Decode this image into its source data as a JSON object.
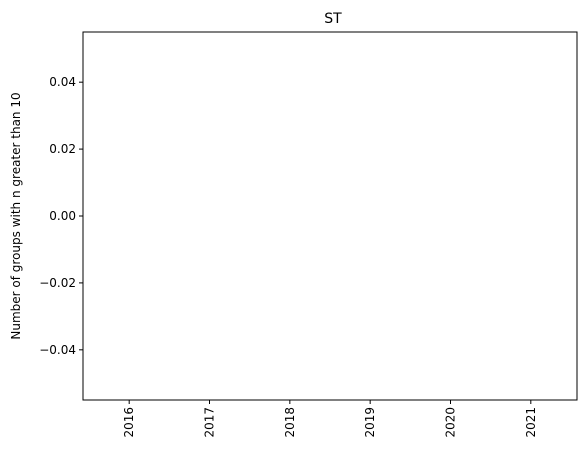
{
  "chart_data": {
    "type": "bar",
    "title": "ST",
    "xlabel": "",
    "ylabel": "Number of groups with n greater than 10",
    "categories": [
      "2016",
      "2017",
      "2018",
      "2019",
      "2020",
      "2021"
    ],
    "values": [
      0,
      0,
      0,
      0,
      0,
      0
    ],
    "ylim": [
      -0.055,
      0.055
    ],
    "y_ticks": [
      -0.04,
      -0.02,
      0.0,
      0.02,
      0.04
    ],
    "y_tick_labels": [
      "−0.04",
      "−0.02",
      "0.00",
      "0.02",
      "0.04"
    ],
    "x_tick_rotation": "vertical",
    "grid": false,
    "legend": "none",
    "colors": {
      "axes": "#000000",
      "background": "#ffffff"
    }
  }
}
